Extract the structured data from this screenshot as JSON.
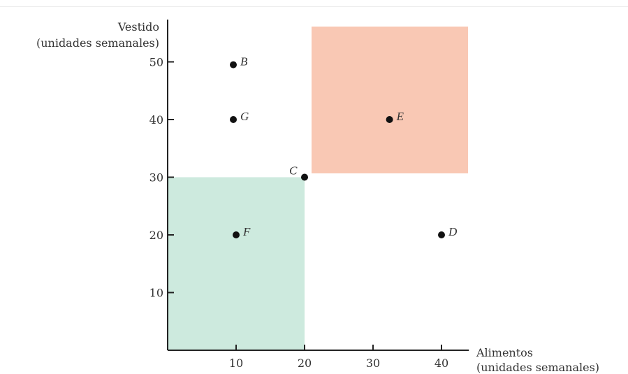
{
  "chart_data": {
    "type": "scatter",
    "xlabel": [
      "Alimentos",
      "(unidades semanales)"
    ],
    "ylabel": [
      "Vestido",
      "(unidades semanales)"
    ],
    "xlim": [
      0,
      44
    ],
    "ylim": [
      0,
      56
    ],
    "x_ticks": [
      10,
      20,
      30,
      40
    ],
    "y_ticks": [
      10,
      20,
      30,
      40,
      50
    ],
    "grid": false,
    "points": [
      {
        "label": "B",
        "x": 10,
        "y": 49.5
      },
      {
        "label": "G",
        "x": 10,
        "y": 40
      },
      {
        "label": "C",
        "x": 20,
        "y": 30
      },
      {
        "label": "E",
        "x": 32,
        "y": 40
      },
      {
        "label": "F",
        "x": 10,
        "y": 20
      },
      {
        "label": "D",
        "x": 40,
        "y": 20
      }
    ],
    "regions": [
      {
        "kind": "inferior",
        "x": [
          0,
          20
        ],
        "y": [
          0,
          30
        ],
        "color": "#cdeade"
      },
      {
        "kind": "preferred",
        "x": [
          20,
          44
        ],
        "y": [
          30,
          56
        ],
        "color": "#f9c8b4"
      }
    ]
  }
}
